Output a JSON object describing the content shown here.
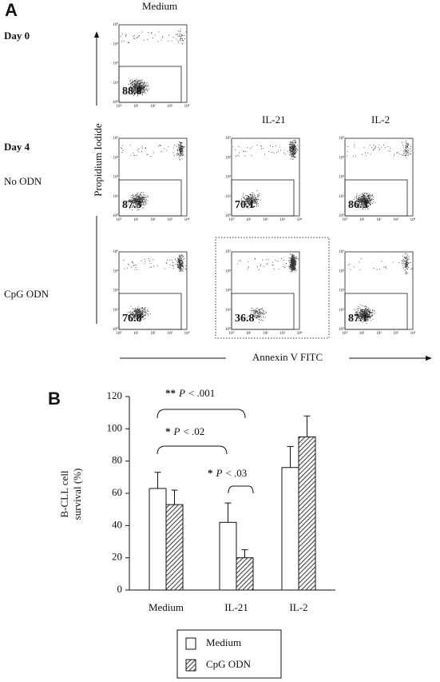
{
  "panel_a": {
    "label": "A",
    "columns": [
      "Medium",
      "IL-21",
      "IL-2"
    ],
    "rows": [
      "Day 0",
      "Day 4",
      "No ODN",
      "CpG ODN"
    ],
    "y_axis": "Propidium Iodide",
    "x_axis": "Annexin V FITC",
    "decade_labels": [
      "10⁰",
      "10¹",
      "10²",
      "10³",
      "10⁴"
    ],
    "plots": [
      {
        "gate_value": 88.8
      },
      {
        "gate_value": 87.3
      },
      {
        "gate_value": 70.1
      },
      {
        "gate_value": 86.3
      },
      {
        "gate_value": 76.8
      },
      {
        "gate_value": 36.8
      },
      {
        "gate_value": 87.1
      }
    ]
  },
  "chart_data": {
    "type": "bar",
    "panel_label": "B",
    "y_label": [
      "B-CLL cell",
      "survival (%)"
    ],
    "categories": [
      "Medium",
      "IL-21",
      "IL-2"
    ],
    "series": [
      {
        "name": "Medium",
        "color": "#ffffff",
        "values": [
          63,
          42,
          76
        ],
        "errors": [
          10,
          12,
          13
        ]
      },
      {
        "name": "CpG ODN",
        "color": "#444444",
        "pattern": "hatch",
        "values": [
          53,
          20,
          95
        ],
        "errors": [
          9,
          5,
          13
        ]
      }
    ],
    "ylim": [
      0,
      120
    ],
    "yticks": [
      0,
      20,
      40,
      60,
      80,
      100,
      120
    ],
    "annotations": [
      {
        "stars": "**",
        "p": "P",
        "text": "< .001"
      },
      {
        "stars": "*",
        "p": "P",
        "text": "< .02"
      },
      {
        "stars": "*",
        "p": "P",
        "text": "< .03"
      }
    ]
  }
}
